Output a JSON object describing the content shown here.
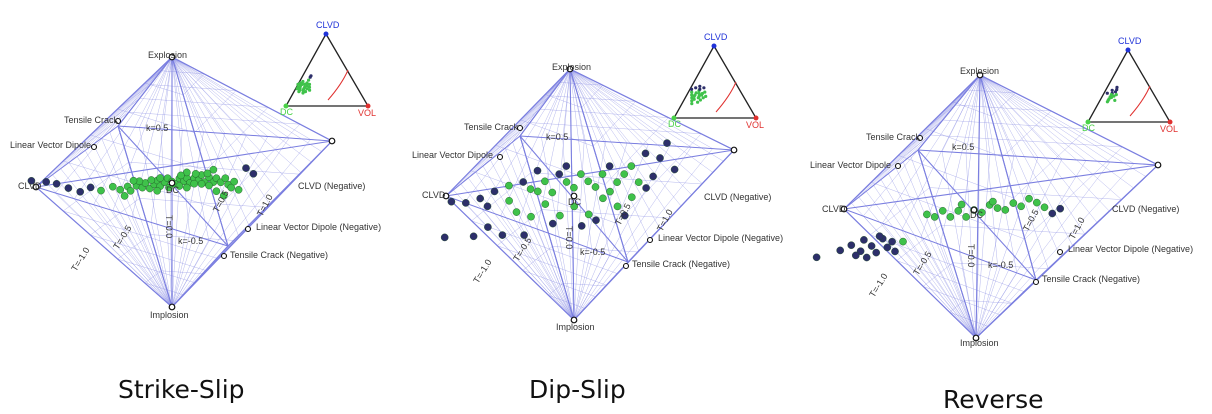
{
  "panels": [
    {
      "caption": "Strike-Slip",
      "labels": {
        "explosion": "Explosion",
        "implosion": "Implosion",
        "clvd": "CLVD",
        "clvd_neg": "CLVD (Negative)",
        "tensile_crack": "Tensile Crack",
        "tensile_crack_neg": "Tensile Crack (Negative)",
        "lvd": "Linear Vector Dipole",
        "lvd_neg": "Linear Vector Dipole (Negative)",
        "dc": "DC",
        "k_pos": "k=0.5",
        "k_neg": "k=-0.5",
        "t_zero": "T=0.0",
        "t_pos_half": "T=0.5",
        "t_pos_one": "T=1.0",
        "t_neg_half": "T=-0.5",
        "t_neg_one": "T=-1.0"
      },
      "ternary_labels": {
        "top": "CLVD",
        "left": "DC",
        "right": "VOL"
      }
    },
    {
      "caption": "Dip-Slip",
      "labels": {
        "explosion": "Explosion",
        "implosion": "Implosion",
        "clvd": "CLVD",
        "clvd_neg": "CLVD (Negative)",
        "tensile_crack": "Tensile Crack",
        "tensile_crack_neg": "Tensile Crack (Negative)",
        "lvd": "Linear Vector Dipole",
        "lvd_neg": "Linear Vector Dipole (Negative)",
        "dc": "DC",
        "k_pos": "k=0.5",
        "k_neg": "k=-0.5",
        "t_zero": "T=0.0",
        "t_pos_half": "T=0.5",
        "t_pos_one": "T=1.0",
        "t_neg_half": "T=-0.5",
        "t_neg_one": "T=-1.0"
      },
      "ternary_labels": {
        "top": "CLVD",
        "left": "DC",
        "right": "VOL"
      }
    },
    {
      "caption": "Reverse",
      "labels": {
        "explosion": "Explosion",
        "implosion": "Implosion",
        "clvd": "CLVD",
        "clvd_neg": "CLVD (Negative)",
        "tensile_crack": "Tensile Crack",
        "tensile_crack_neg": "Tensile Crack (Negative)",
        "lvd": "Linear Vector Dipole",
        "lvd_neg": "Linear Vector Dipole (Negative)",
        "dc": "DC",
        "k_pos": "k=0.5",
        "k_neg": "k=-0.5",
        "t_zero": "T=0.0",
        "t_pos_half": "T=0.5",
        "t_pos_one": "T=1.0",
        "t_neg_half": "T=-0.5",
        "t_neg_one": "T=-1.0"
      },
      "ternary_labels": {
        "top": "CLVD",
        "left": "DC",
        "right": "VOL"
      }
    }
  ],
  "colors": {
    "grid": "#7b7fe0",
    "background": "#ffffff",
    "point_green": "#3fc24a",
    "point_dark": "#2d2f6a",
    "ternary_dc": "#49d246",
    "ternary_clvd": "#2033d8",
    "ternary_vol": "#e0312f",
    "ternary_curve": "#e0312f"
  },
  "chart_data": [
    {
      "type": "scatter",
      "title": "Strike-Slip",
      "xlabel": "k",
      "ylabel": "T",
      "xlim": [
        -1,
        1
      ],
      "ylim": [
        -1,
        1
      ],
      "grid": true,
      "points": [
        [
          -0.55,
          0.12
        ],
        [
          -0.62,
          0.08
        ],
        [
          -0.7,
          0.16
        ],
        [
          -0.48,
          0.05
        ],
        [
          -0.4,
          0.08
        ],
        [
          -0.35,
          0.02
        ],
        [
          -0.3,
          0.05
        ],
        [
          -0.28,
          -0.02
        ],
        [
          -0.24,
          0.04
        ],
        [
          -0.2,
          0.0
        ],
        [
          -0.18,
          0.06
        ],
        [
          -0.15,
          -0.03
        ],
        [
          -0.12,
          0.02
        ],
        [
          -0.1,
          0.07
        ],
        [
          -0.08,
          -0.02
        ],
        [
          -0.05,
          0.03
        ],
        [
          -0.03,
          0.08
        ],
        [
          0.0,
          0.02
        ],
        [
          0.02,
          -0.02
        ],
        [
          0.05,
          0.05
        ],
        [
          0.08,
          0.0
        ],
        [
          0.1,
          0.04
        ],
        [
          0.12,
          -0.04
        ],
        [
          0.15,
          0.02
        ],
        [
          0.18,
          -0.02
        ],
        [
          0.2,
          0.05
        ],
        [
          0.22,
          -0.06
        ],
        [
          0.25,
          0.0
        ],
        [
          0.28,
          -0.08
        ],
        [
          0.3,
          -0.03
        ],
        [
          0.33,
          -0.1
        ],
        [
          0.36,
          -0.05
        ],
        [
          0.38,
          -0.15
        ],
        [
          0.4,
          -0.2
        ],
        [
          0.42,
          -0.12
        ],
        [
          0.45,
          -0.25
        ],
        [
          0.35,
          -0.3
        ],
        [
          0.3,
          -0.22
        ],
        [
          0.25,
          -0.12
        ],
        [
          0.2,
          -0.08
        ],
        [
          0.15,
          -0.06
        ],
        [
          0.1,
          -0.1
        ],
        [
          0.05,
          -0.06
        ],
        [
          -0.02,
          -0.06
        ],
        [
          -0.08,
          0.1
        ],
        [
          -0.14,
          0.09
        ],
        [
          -0.22,
          0.1
        ],
        [
          -0.26,
          0.12
        ],
        [
          0.16,
          0.08
        ],
        [
          0.24,
          0.06
        ],
        [
          -0.95,
          0.35
        ],
        [
          -0.85,
          0.3
        ],
        [
          -0.78,
          0.25
        ],
        [
          0.5,
          0.05
        ],
        [
          0.55,
          -0.05
        ],
        [
          0.28,
          0.1
        ],
        [
          -0.32,
          -0.08
        ],
        [
          0.1,
          0.12
        ],
        [
          -0.1,
          -0.08
        ],
        [
          0.06,
          0.09
        ]
      ],
      "ternary": [
        [
          0.7,
          0.25
        ],
        [
          0.68,
          0.28
        ],
        [
          0.65,
          0.3
        ],
        [
          0.72,
          0.22
        ],
        [
          0.66,
          0.24
        ],
        [
          0.62,
          0.3
        ],
        [
          0.7,
          0.3
        ],
        [
          0.6,
          0.28
        ],
        [
          0.74,
          0.2
        ],
        [
          0.64,
          0.26
        ],
        [
          0.58,
          0.32
        ],
        [
          0.68,
          0.22
        ],
        [
          0.62,
          0.24
        ],
        [
          0.72,
          0.26
        ],
        [
          0.56,
          0.3
        ],
        [
          0.66,
          0.2
        ],
        [
          0.6,
          0.22
        ],
        [
          0.7,
          0.18
        ],
        [
          0.54,
          0.36
        ],
        [
          0.5,
          0.4
        ],
        [
          0.48,
          0.42
        ],
        [
          0.62,
          0.34
        ],
        [
          0.66,
          0.32
        ],
        [
          0.58,
          0.26
        ],
        [
          0.74,
          0.24
        ]
      ]
    },
    {
      "type": "scatter",
      "title": "Dip-Slip",
      "xlabel": "k",
      "ylabel": "T",
      "xlim": [
        -1,
        1
      ],
      "ylim": [
        -1,
        1
      ],
      "grid": true,
      "points": [
        [
          -0.85,
          0.2
        ],
        [
          -0.75,
          0.15
        ],
        [
          -0.65,
          0.18
        ],
        [
          -0.9,
          -0.3
        ],
        [
          -0.7,
          -0.35
        ],
        [
          -0.6,
          -0.25
        ],
        [
          -0.55,
          0.25
        ],
        [
          -0.45,
          0.3
        ],
        [
          -0.35,
          0.32
        ],
        [
          -0.3,
          0.2
        ],
        [
          -0.25,
          0.15
        ],
        [
          -0.2,
          0.28
        ],
        [
          -0.15,
          0.1
        ],
        [
          -0.1,
          0.35
        ],
        [
          -0.05,
          0.22
        ],
        [
          0.0,
          0.12
        ],
        [
          0.05,
          0.3
        ],
        [
          0.1,
          0.18
        ],
        [
          0.15,
          0.08
        ],
        [
          0.2,
          0.25
        ],
        [
          0.25,
          0.35
        ],
        [
          0.3,
          0.1
        ],
        [
          0.35,
          0.2
        ],
        [
          0.4,
          0.3
        ],
        [
          0.45,
          0.05
        ],
        [
          -0.4,
          -0.1
        ],
        [
          -0.3,
          -0.2
        ],
        [
          -0.2,
          -0.05
        ],
        [
          -0.1,
          -0.25
        ],
        [
          0.0,
          -0.15
        ],
        [
          0.1,
          -0.3
        ],
        [
          0.2,
          -0.1
        ],
        [
          0.3,
          -0.25
        ],
        [
          0.4,
          -0.15
        ],
        [
          0.5,
          -0.05
        ],
        [
          -0.5,
          -0.4
        ],
        [
          -0.35,
          -0.45
        ],
        [
          0.15,
          -0.4
        ],
        [
          0.35,
          -0.4
        ],
        [
          0.55,
          0.1
        ],
        [
          0.6,
          0.35
        ],
        [
          -0.6,
          0.05
        ],
        [
          -0.15,
          -0.35
        ],
        [
          0.05,
          -0.45
        ],
        [
          0.25,
          -0.02
        ],
        [
          -0.45,
          0.08
        ],
        [
          0.65,
          0.55
        ],
        [
          0.5,
          0.45
        ],
        [
          -0.05,
          0.45
        ],
        [
          -0.25,
          0.45
        ],
        [
          0.7,
          0.15
        ]
      ],
      "ternary": [
        [
          0.6,
          0.3
        ],
        [
          0.55,
          0.35
        ],
        [
          0.5,
          0.38
        ],
        [
          0.62,
          0.26
        ],
        [
          0.58,
          0.32
        ],
        [
          0.52,
          0.42
        ],
        [
          0.48,
          0.4
        ],
        [
          0.64,
          0.28
        ],
        [
          0.56,
          0.28
        ],
        [
          0.5,
          0.32
        ],
        [
          0.46,
          0.44
        ],
        [
          0.6,
          0.36
        ],
        [
          0.54,
          0.3
        ],
        [
          0.66,
          0.24
        ],
        [
          0.44,
          0.36
        ],
        [
          0.58,
          0.4
        ],
        [
          0.52,
          0.34
        ],
        [
          0.62,
          0.32
        ],
        [
          0.48,
          0.34
        ],
        [
          0.68,
          0.2
        ],
        [
          0.42,
          0.42
        ],
        [
          0.55,
          0.25
        ],
        [
          0.6,
          0.22
        ],
        [
          0.5,
          0.28
        ],
        [
          0.46,
          0.3
        ]
      ]
    },
    {
      "type": "scatter",
      "title": "Reverse",
      "xlabel": "k",
      "ylabel": "T",
      "xlim": [
        -1,
        1
      ],
      "ylim": [
        -1,
        1
      ],
      "grid": true,
      "points": [
        [
          -0.85,
          -0.3
        ],
        [
          -0.78,
          -0.25
        ],
        [
          -0.72,
          -0.35
        ],
        [
          -0.7,
          -0.2
        ],
        [
          -0.65,
          -0.3
        ],
        [
          -0.62,
          -0.4
        ],
        [
          -0.58,
          -0.22
        ],
        [
          -0.55,
          -0.35
        ],
        [
          -0.52,
          -0.28
        ],
        [
          -0.5,
          -0.42
        ],
        [
          -0.68,
          -0.45
        ],
        [
          -0.75,
          -0.4
        ],
        [
          -0.45,
          -0.3
        ],
        [
          -0.6,
          -0.18
        ],
        [
          -0.2,
          0.05
        ],
        [
          -0.15,
          -0.05
        ],
        [
          -0.1,
          0.02
        ],
        [
          -0.05,
          -0.08
        ],
        [
          0.0,
          0.0
        ],
        [
          0.05,
          -0.05
        ],
        [
          0.1,
          0.04
        ],
        [
          0.15,
          -0.02
        ],
        [
          0.2,
          -0.06
        ],
        [
          0.25,
          0.02
        ],
        [
          -0.25,
          -0.02
        ],
        [
          -0.3,
          0.03
        ],
        [
          0.3,
          -0.04
        ],
        [
          0.12,
          0.08
        ],
        [
          -0.08,
          0.1
        ],
        [
          0.35,
          0.05
        ],
        [
          0.4,
          -0.02
        ],
        [
          0.45,
          -0.1
        ],
        [
          0.5,
          -0.2
        ],
        [
          0.55,
          -0.15
        ],
        [
          -1.0,
          -0.35
        ]
      ],
      "ternary": [
        [
          0.55,
          0.35
        ],
        [
          0.5,
          0.4
        ],
        [
          0.45,
          0.42
        ],
        [
          0.58,
          0.32
        ],
        [
          0.52,
          0.38
        ],
        [
          0.48,
          0.44
        ],
        [
          0.6,
          0.3
        ],
        [
          0.54,
          0.34
        ],
        [
          0.42,
          0.45
        ],
        [
          0.5,
          0.36
        ],
        [
          0.56,
          0.4
        ],
        [
          0.46,
          0.38
        ],
        [
          0.62,
          0.28
        ],
        [
          0.4,
          0.48
        ],
        [
          0.52,
          0.3
        ]
      ]
    }
  ]
}
